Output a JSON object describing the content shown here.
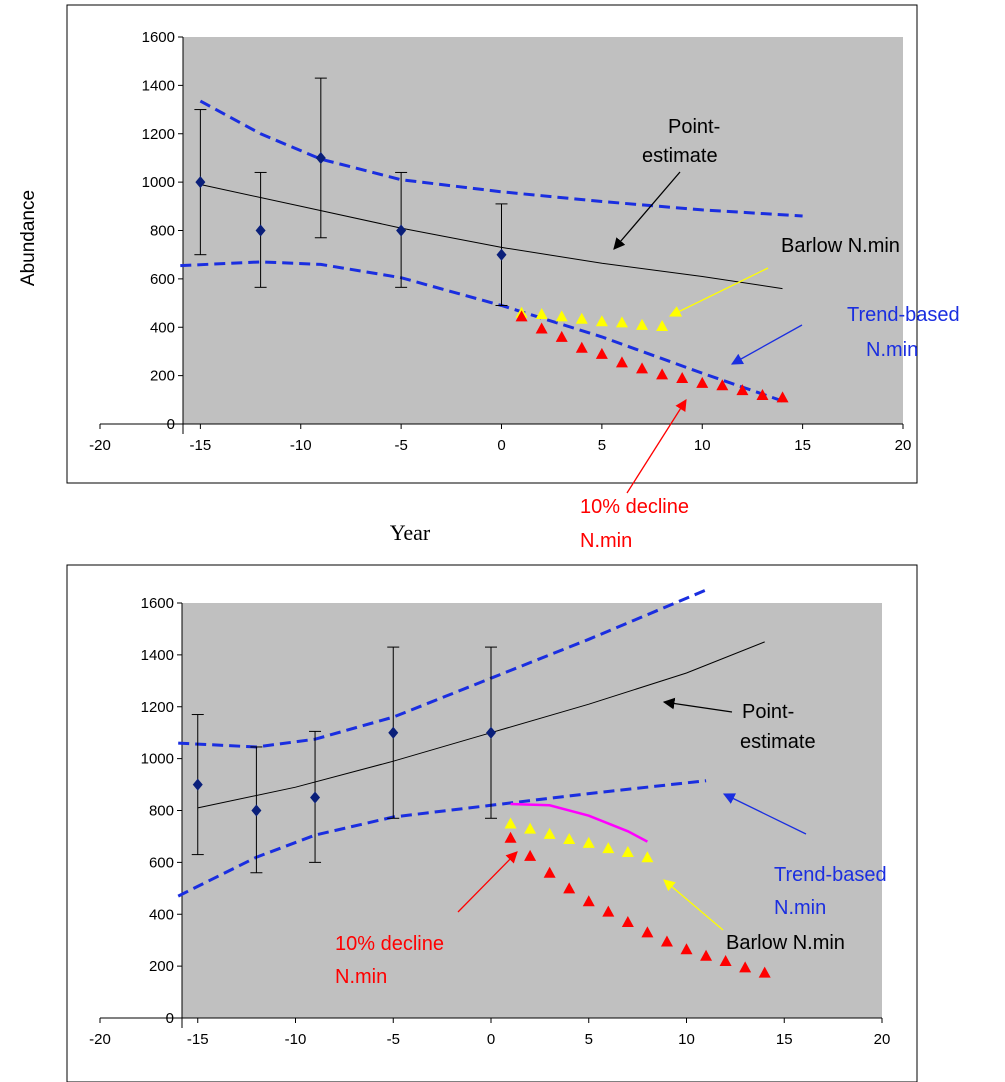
{
  "colors": {
    "plot_bg": "#c0c0c0",
    "marker": "#0a1f7a",
    "ci": "#1a2ee0",
    "point_estimate": "#000000",
    "barlow": "#ffff00",
    "decline": "#ff0000",
    "extra": "#ff00ff"
  },
  "chart_data": [
    {
      "type": "scatter",
      "ylabel": "Abundance",
      "xlabel": "Year",
      "xlim": [
        -20,
        20
      ],
      "ylim": [
        0,
        1600
      ],
      "x_ticks": [
        "-20",
        "-15",
        "-10",
        "-5",
        "0",
        "5",
        "10",
        "15",
        "20"
      ],
      "y_ticks": [
        "0",
        "200",
        "400",
        "600",
        "800",
        "1000",
        "1200",
        "1400",
        "1600"
      ],
      "grid": false,
      "observations": {
        "x": [
          -15,
          -12,
          -9,
          -5,
          0
        ],
        "y": [
          1000,
          800,
          1100,
          800,
          700
        ],
        "lower": [
          700,
          565,
          770,
          565,
          490
        ],
        "upper": [
          1300,
          1040,
          1430,
          1040,
          910
        ]
      },
      "point_estimate": {
        "x": [
          -15,
          -10,
          -5,
          0,
          5,
          10,
          14
        ],
        "y": [
          990,
          900,
          810,
          730,
          665,
          610,
          560
        ]
      },
      "ci_upper": {
        "x": [
          -15,
          -12,
          -9,
          -5,
          0,
          5,
          10,
          15
        ],
        "y": [
          1335,
          1200,
          1095,
          1010,
          960,
          920,
          885,
          860
        ]
      },
      "ci_lower": {
        "x": [
          -16,
          -12,
          -9,
          -5,
          0,
          5,
          10,
          14
        ],
        "y": [
          655,
          670,
          660,
          605,
          490,
          360,
          210,
          95
        ]
      },
      "barlow_nmin": {
        "x": [
          1,
          2,
          3,
          4,
          5,
          6,
          7,
          8
        ],
        "y": [
          460,
          455,
          445,
          435,
          425,
          420,
          410,
          405
        ]
      },
      "decline_nmin": {
        "x": [
          1,
          2,
          3,
          4,
          5,
          6,
          7,
          8,
          9,
          10,
          11,
          12,
          13,
          14
        ],
        "y": [
          445,
          395,
          360,
          315,
          290,
          255,
          230,
          205,
          190,
          170,
          160,
          140,
          120,
          110
        ]
      },
      "annotations": {
        "point_estimate": [
          "Point-",
          "estimate"
        ],
        "barlow": "Barlow N.min",
        "trend": [
          "Trend-based",
          "N.min"
        ],
        "decline": [
          "10% decline",
          "N.min"
        ]
      }
    },
    {
      "type": "scatter",
      "xlim": [
        -20,
        20
      ],
      "ylim": [
        0,
        1600
      ],
      "x_ticks": [
        "-20",
        "-15",
        "-10",
        "-5",
        "0",
        "5",
        "10",
        "15",
        "20"
      ],
      "y_ticks": [
        "0",
        "200",
        "400",
        "600",
        "800",
        "1000",
        "1200",
        "1400",
        "1600"
      ],
      "grid": false,
      "observations": {
        "x": [
          -15,
          -12,
          -9,
          -5,
          0
        ],
        "y": [
          900,
          800,
          850,
          1100,
          1100
        ],
        "lower": [
          630,
          560,
          600,
          770,
          770
        ],
        "upper": [
          1170,
          1045,
          1105,
          1430,
          1430
        ]
      },
      "point_estimate": {
        "x": [
          -15,
          -10,
          -5,
          0,
          5,
          10,
          14
        ],
        "y": [
          810,
          890,
          990,
          1100,
          1210,
          1330,
          1450
        ]
      },
      "ci_upper": {
        "x": [
          -16,
          -12,
          -9,
          -5,
          0,
          5,
          11
        ],
        "y": [
          1060,
          1045,
          1075,
          1160,
          1310,
          1460,
          1650
        ]
      },
      "ci_lower": {
        "x": [
          -16,
          -12,
          -9,
          -5,
          0,
          5,
          11
        ],
        "y": [
          470,
          620,
          705,
          775,
          820,
          865,
          915
        ]
      },
      "barlow_nmin": {
        "x": [
          1,
          2,
          3,
          4,
          5,
          6,
          7,
          8
        ],
        "y": [
          750,
          730,
          710,
          690,
          675,
          655,
          640,
          620
        ]
      },
      "decline_nmin": {
        "x": [
          1,
          2,
          3,
          4,
          5,
          6,
          7,
          8,
          9,
          10,
          11,
          12,
          13,
          14
        ],
        "y": [
          695,
          625,
          560,
          500,
          450,
          410,
          370,
          330,
          295,
          265,
          240,
          220,
          195,
          175
        ]
      },
      "extra_line": {
        "x": [
          1,
          3,
          5,
          7,
          8
        ],
        "y": [
          825,
          820,
          780,
          720,
          680
        ]
      },
      "annotations": {
        "point_estimate": [
          "Point-",
          "estimate"
        ],
        "barlow": "Barlow N.min",
        "trend": [
          "Trend-based",
          "N.min"
        ],
        "decline": [
          "10% decline",
          "N.min"
        ]
      }
    }
  ]
}
